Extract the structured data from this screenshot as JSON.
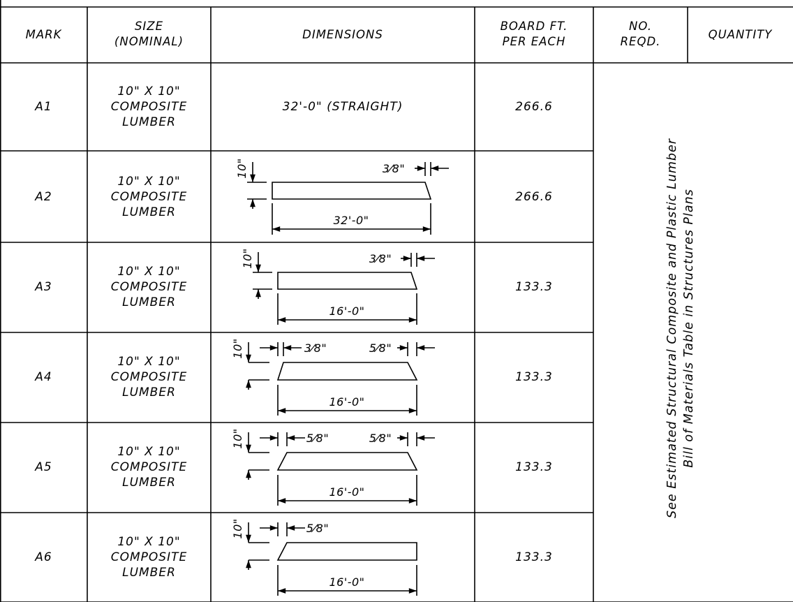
{
  "headers": {
    "mark": "MARK",
    "size": [
      "SIZE",
      "(NOMINAL)"
    ],
    "dimensions": "DIMENSIONS",
    "board_ft": [
      "BOARD FT.",
      "PER EACH"
    ],
    "no_reqd": [
      "NO.",
      "REQD."
    ],
    "quantity": "QUANTITY"
  },
  "rows": [
    {
      "mark": "A1",
      "size": [
        "10\" X 10\"",
        "COMPOSITE",
        "LUMBER"
      ],
      "dimension_text": "32'-0\" (STRAIGHT)",
      "board_ft": "266.6"
    },
    {
      "mark": "A2",
      "size": [
        "10\" X 10\"",
        "COMPOSITE",
        "LUMBER"
      ],
      "board_ft": "266.6",
      "height_label": "10\"",
      "length_label": "32'-0\"",
      "left_taper": "",
      "right_taper": "3⁄8\""
    },
    {
      "mark": "A3",
      "size": [
        "10\" X 10\"",
        "COMPOSITE",
        "LUMBER"
      ],
      "board_ft": "133.3",
      "height_label": "10\"",
      "length_label": "16'-0\"",
      "left_taper": "",
      "right_taper": "3⁄8\""
    },
    {
      "mark": "A4",
      "size": [
        "10\" X 10\"",
        "COMPOSITE",
        "LUMBER"
      ],
      "board_ft": "133.3",
      "height_label": "10\"",
      "length_label": "16'-0\"",
      "left_taper": "3⁄8\"",
      "right_taper": "5⁄8\""
    },
    {
      "mark": "A5",
      "size": [
        "10\" X 10\"",
        "COMPOSITE",
        "LUMBER"
      ],
      "board_ft": "133.3",
      "height_label": "10\"",
      "length_label": "16'-0\"",
      "left_taper": "5⁄8\"",
      "right_taper": "5⁄8\""
    },
    {
      "mark": "A6",
      "size": [
        "10\" X 10\"",
        "COMPOSITE",
        "LUMBER"
      ],
      "board_ft": "133.3",
      "height_label": "10\"",
      "length_label": "16'-0\"",
      "left_taper": "5⁄8\"",
      "right_taper": ""
    }
  ],
  "note": [
    "See Estimated Structural Composite and Plastic Lumber",
    "Bill of Materials Table in Structures Plans"
  ]
}
